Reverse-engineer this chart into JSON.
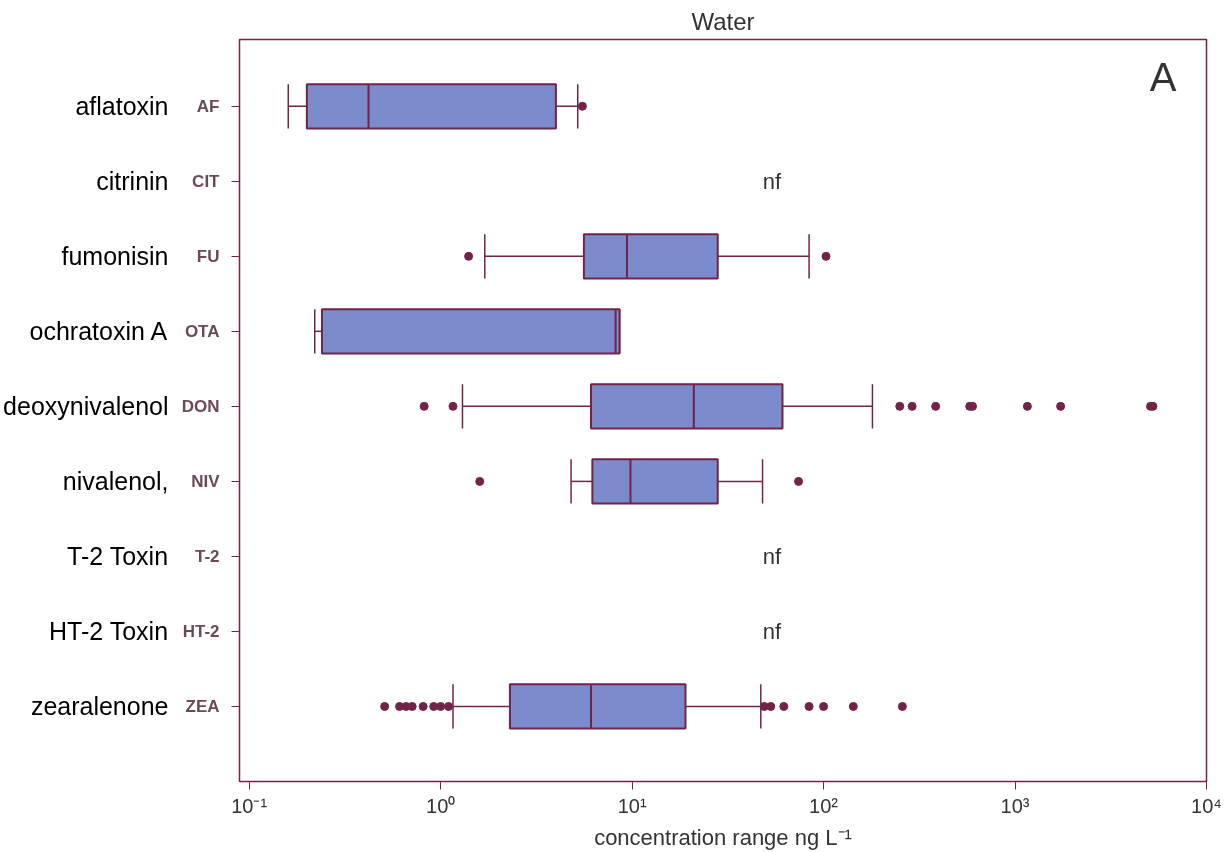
{
  "chart_data": {
    "type": "box",
    "orientation": "horizontal",
    "title": "Water",
    "xlabel": "concentration range ng L⁻¹",
    "categories": [
      "AF",
      "CIT",
      "FU",
      "OTA",
      "DON",
      "NIV",
      "T-2",
      "HT-2",
      "ZEA"
    ],
    "y2_categories": [
      "aflatoxin",
      "citrinin",
      "fumonisin",
      "ochratoxin A",
      "deoxynivalenol",
      "nivalenol,",
      "T-2 Toxin",
      "HT-2 Toxin",
      "zearalenone"
    ],
    "log": "x",
    "grid": false,
    "marker": "circle",
    "xlim": [
      0.089,
      10000
    ],
    "xticks": [
      {
        "value": 0.1,
        "label": "10⁻¹"
      },
      {
        "value": 1,
        "label": "10⁰"
      },
      {
        "value": 10,
        "label": "10¹"
      },
      {
        "value": 100,
        "label": "10²"
      },
      {
        "value": 1000,
        "label": "10³"
      },
      {
        "value": 10000,
        "label": "10⁴"
      }
    ],
    "series": [
      {
        "color": "#7b8bcb",
        "boxes": [
          {
            "low": 0.16,
            "q1": 0.2,
            "median": 0.42,
            "q3": 4.0,
            "high": 5.2,
            "outliers": [
              5.5
            ]
          },
          null,
          {
            "low": 1.7,
            "q1": 5.6,
            "median": 9.4,
            "q3": 28,
            "high": 84,
            "outliers": [
              1.4,
              103
            ]
          },
          {
            "low": 0.22,
            "q1": 0.24,
            "median": 8.2,
            "q3": 8.6,
            "high": 8.6
          },
          {
            "low": 1.3,
            "q1": 6.1,
            "median": 21,
            "q3": 61,
            "high": 180,
            "outliers": [
              0.82,
              1.16,
              250,
              290,
              385,
              580,
              600,
              1160,
              1730,
              5100,
              5250
            ]
          },
          {
            "low": 4.8,
            "q1": 6.2,
            "median": 9.8,
            "q3": 28,
            "high": 48,
            "outliers": [
              1.6,
              74
            ]
          },
          null,
          null,
          {
            "low": 1.16,
            "q1": 2.3,
            "median": 6.1,
            "q3": 19,
            "high": 47,
            "outliers": [
              0.51,
              0.61,
              0.66,
              0.71,
              0.81,
              0.92,
              1.0,
              1.1,
              49,
              53,
              62,
              84,
              100,
              143,
              258
            ]
          }
        ]
      }
    ],
    "annotations": [
      "nf",
      "nf",
      "nf",
      "A"
    ]
  }
}
